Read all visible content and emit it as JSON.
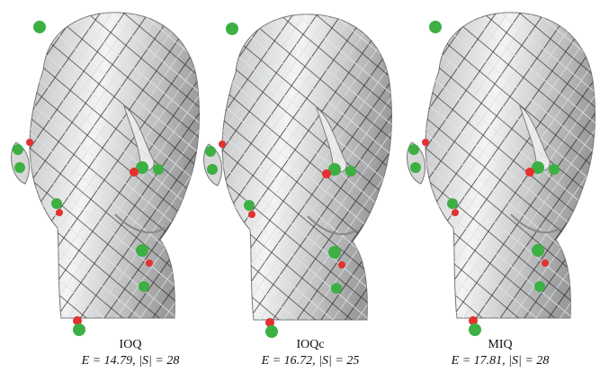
{
  "panels": [
    {
      "method": "IOQ",
      "stats": "E = 14.79, |S| = 28"
    },
    {
      "method": "IOQc",
      "stats": "E = 16.72, |S| = 25"
    },
    {
      "method": "MIQ",
      "stats": "E = 17.81, |S| = 28"
    }
  ]
}
